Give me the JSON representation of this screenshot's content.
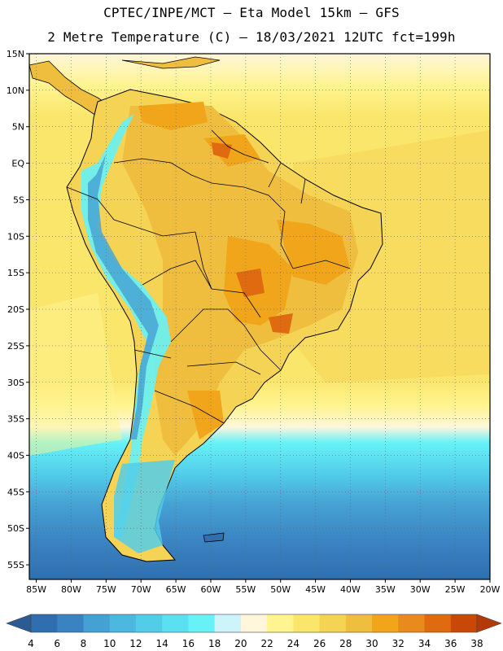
{
  "header": {
    "line1": "CPTEC/INPE/MCT –  Eta Model 15km – GFS",
    "line2": "2 Metre Temperature (C) – 18/03/2021 12UTC fct=199h"
  },
  "map": {
    "lat_labels": [
      "15N",
      "10N",
      "5N",
      "EQ",
      "5S",
      "10S",
      "15S",
      "20S",
      "25S",
      "30S",
      "35S",
      "40S",
      "45S",
      "50S",
      "55S"
    ],
    "lon_labels": [
      "85W",
      "80W",
      "75W",
      "70W",
      "65W",
      "60W",
      "55W",
      "50W",
      "45W",
      "40W",
      "35W",
      "30W",
      "25W",
      "20W"
    ],
    "lat_range": [
      15,
      -57
    ],
    "lon_range": [
      -86,
      -20
    ]
  },
  "colorbar": {
    "labels": [
      "4",
      "6",
      "8",
      "10",
      "12",
      "14",
      "16",
      "18",
      "20",
      "22",
      "24",
      "26",
      "28",
      "30",
      "32",
      "34",
      "36",
      "38"
    ],
    "colors": [
      "#2f6fb0",
      "#3a83c2",
      "#45a0d3",
      "#4cb8e0",
      "#52cde9",
      "#5ae0f0",
      "#66f2f7",
      "#cdf4fb",
      "#fff6dc",
      "#fff48f",
      "#fbe66c",
      "#f5d455",
      "#efbe3e",
      "#f0a51a",
      "#e98b1c",
      "#e06a10",
      "#c94707"
    ],
    "low_color": "#2c5b94",
    "high_color": "#b33a08"
  }
}
